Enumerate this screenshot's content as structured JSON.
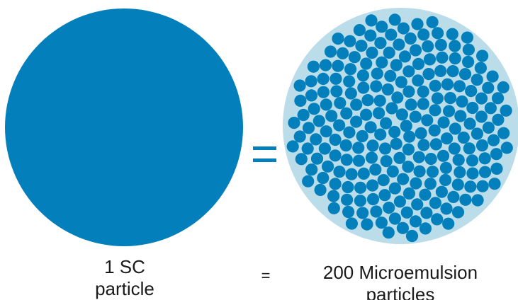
{
  "left": {
    "line1": "1 SC",
    "line2": "particle"
  },
  "equals_label": "=",
  "right": {
    "line1": "200 Microemulsion",
    "line2": "particles"
  },
  "colors": {
    "particle": "#0380BC",
    "matrix": "#BBDDEA",
    "text": "#1a1a1a"
  }
}
